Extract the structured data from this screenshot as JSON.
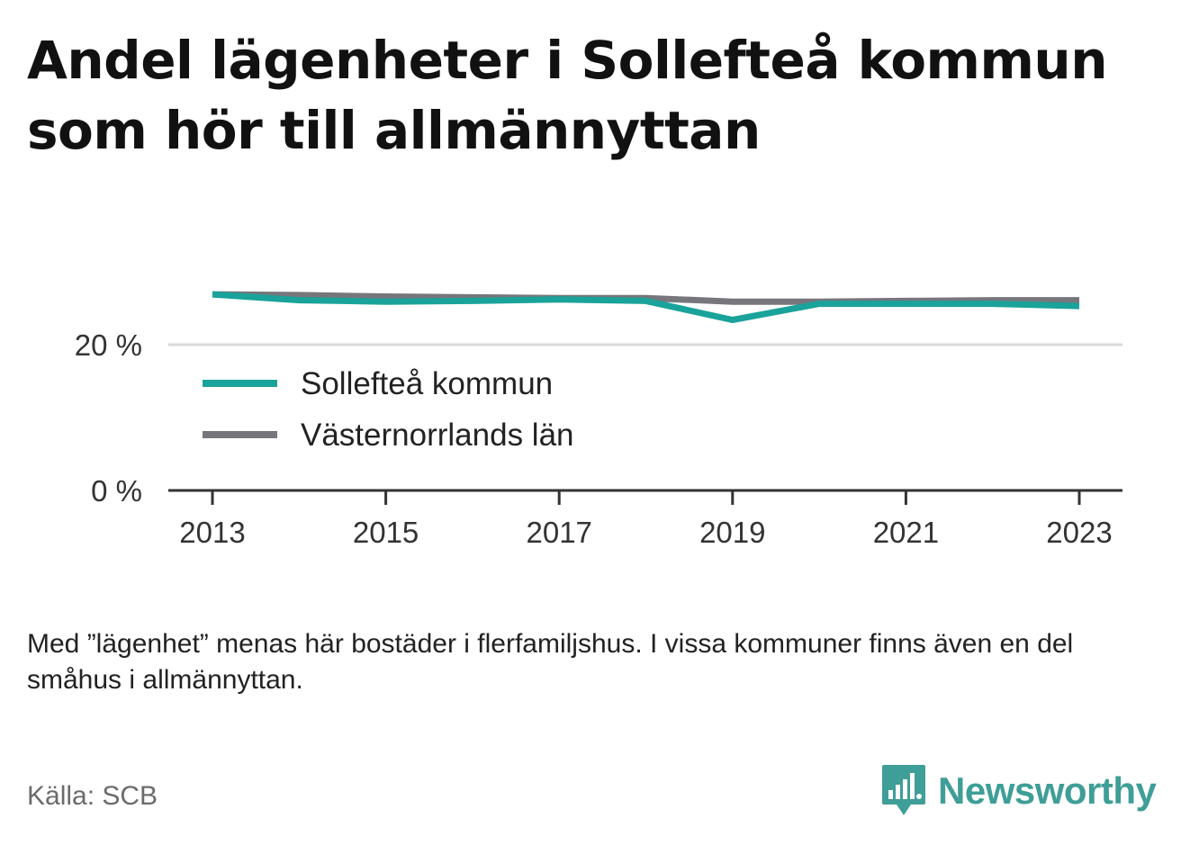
{
  "title": "Andel lägenheter i Sollefteå kommun som hör till allmännyttan",
  "note": "Med ”lägenhet” menas här bostäder i flerfamiljshus. I vissa kommuner finns även en del småhus i allmännyttan.",
  "source": "Källa: SCB",
  "brand": {
    "name": "Newsworthy",
    "icon": "bar-chart-speech-bubble-icon",
    "color": "#3f9e97"
  },
  "chart_data": {
    "type": "line",
    "x": [
      2013,
      2014,
      2015,
      2016,
      2017,
      2018,
      2019,
      2020,
      2021,
      2022,
      2023
    ],
    "series": [
      {
        "name": "Sollefteå kommun",
        "color": "#1aa39a",
        "values": [
          26.9,
          26.1,
          25.9,
          26.0,
          26.2,
          26.0,
          23.4,
          25.6,
          25.6,
          25.6,
          25.3
        ]
      },
      {
        "name": "Västernorrlands län",
        "color": "#76767c",
        "values": [
          26.9,
          26.8,
          26.6,
          26.5,
          26.4,
          26.4,
          25.9,
          25.9,
          26.0,
          26.1,
          26.1
        ]
      }
    ],
    "ylim": [
      0,
      30
    ],
    "yticks": [
      0,
      20
    ],
    "ytick_labels": [
      "0 %",
      "20 %"
    ],
    "xticks": [
      2013,
      2015,
      2017,
      2019,
      2021,
      2023
    ],
    "xtick_labels": [
      "2013",
      "2015",
      "2017",
      "2019",
      "2021",
      "2023"
    ],
    "grid": true,
    "legend": "inside-left"
  }
}
